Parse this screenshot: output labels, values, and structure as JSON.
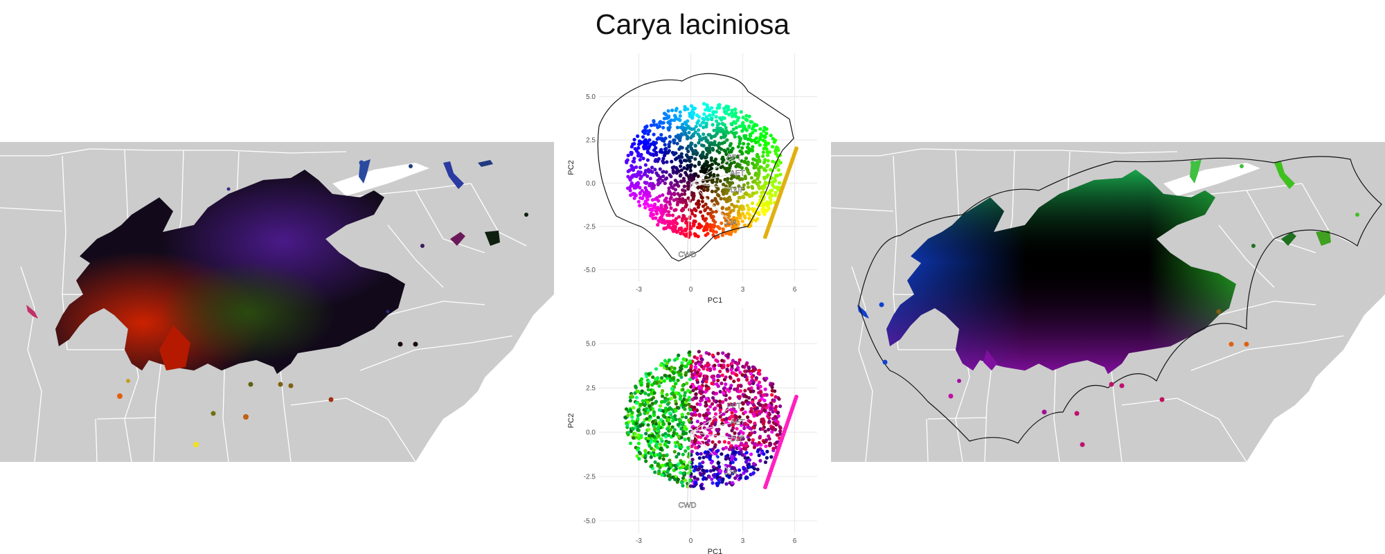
{
  "title": "Carya laciniosa",
  "chart_data": [
    {
      "type": "scatter",
      "panel": "pca-top",
      "xlabel": "PC1",
      "ylabel": "PC2",
      "xlim": [
        -5.3,
        7.3
      ],
      "ylim": [
        -5.7,
        7.5
      ],
      "xticks": [
        -3,
        0,
        3,
        6
      ],
      "yticks": [
        -5.0,
        -2.5,
        0.0,
        2.5,
        5.0
      ],
      "grid": true,
      "coloring": "color wheel by PC position (center black)",
      "hull": true,
      "loadings": [
        {
          "label": "PPT",
          "x": 2.5,
          "y": 1.5
        },
        {
          "label": "AET",
          "x": 2.7,
          "y": 0.6
        },
        {
          "label": "CWD",
          "x": -0.2,
          "y": -4.1
        },
        {
          "label": "DJF",
          "x": 2.7,
          "y": -0.35
        },
        {
          "label": "JJA",
          "x": 2.3,
          "y": -2.25
        }
      ]
    },
    {
      "type": "scatter",
      "panel": "pca-bottom",
      "xlabel": "PC1",
      "ylabel": "PC2",
      "xlim": [
        -5.3,
        7.3
      ],
      "ylim": [
        -5.7,
        7.0
      ],
      "xticks": [
        -3,
        0,
        3,
        6
      ],
      "yticks": [
        -5.0,
        -2.5,
        0.0,
        2.5,
        5.0
      ],
      "grid": true,
      "coloring": "color wheel by geographic position",
      "hull": false,
      "loadings": [
        {
          "label": "PPT",
          "x": 2.5,
          "y": 1.5
        },
        {
          "label": "AET",
          "x": 2.7,
          "y": 0.6
        },
        {
          "label": "CWD",
          "x": -0.2,
          "y": -4.1
        },
        {
          "label": "DJF",
          "x": 2.7,
          "y": -0.35
        },
        {
          "label": "JJA",
          "x": 2.3,
          "y": -2.25
        }
      ]
    }
  ],
  "colors": {
    "land": "#cccccc",
    "border": "#ffffff",
    "grid": "#ebebeb",
    "hull": "#000000"
  }
}
